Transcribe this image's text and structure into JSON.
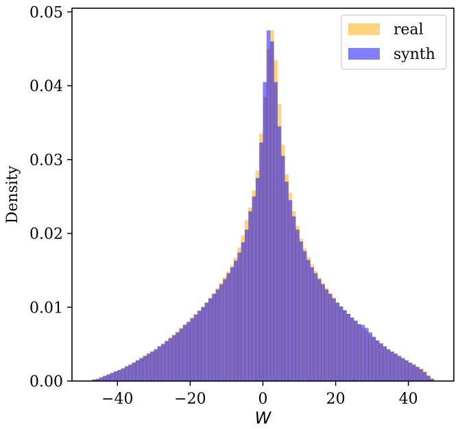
{
  "chart_data": {
    "type": "histogram",
    "xlabel": "W",
    "ylabel": "Density",
    "xlim": [
      -52.5,
      52.5
    ],
    "ylim": [
      0,
      0.0505
    ],
    "xticks": [
      -40,
      -20,
      0,
      20,
      40
    ],
    "xtick_labels": [
      "−40",
      "−20",
      "0",
      "20",
      "40"
    ],
    "yticks": [
      0.0,
      0.01,
      0.02,
      0.03,
      0.04,
      0.05
    ],
    "ytick_labels": [
      "0.00",
      "0.01",
      "0.02",
      "0.03",
      "0.04",
      "0.05"
    ],
    "grid": false,
    "legend_position": "top-right",
    "bin_range": [
      -47,
      47
    ],
    "bin_count": 94,
    "series": [
      {
        "name": "real",
        "color": "#ffa500",
        "alpha": 0.5,
        "values": [
          0.0002,
          0.0003,
          0.0005,
          0.0007,
          0.0009,
          0.0011,
          0.0013,
          0.0015,
          0.0018,
          0.002,
          0.0023,
          0.0025,
          0.0028,
          0.0031,
          0.0034,
          0.0037,
          0.004,
          0.0043,
          0.0047,
          0.0051,
          0.0055,
          0.0059,
          0.0063,
          0.0067,
          0.0072,
          0.0077,
          0.0081,
          0.0086,
          0.0091,
          0.0096,
          0.0101,
          0.0107,
          0.0113,
          0.0119,
          0.0126,
          0.0133,
          0.0141,
          0.0148,
          0.0157,
          0.0167,
          0.0181,
          0.0197,
          0.0218,
          0.0235,
          0.0258,
          0.0285,
          0.0335,
          0.0385,
          0.045,
          0.0475,
          0.0435,
          0.0375,
          0.032,
          0.028,
          0.0255,
          0.023,
          0.021,
          0.0193,
          0.018,
          0.0168,
          0.0158,
          0.0149,
          0.014,
          0.0133,
          0.0126,
          0.0119,
          0.0113,
          0.0107,
          0.0101,
          0.0096,
          0.0091,
          0.0086,
          0.0081,
          0.0077,
          0.0072,
          0.0068,
          0.0063,
          0.0059,
          0.0055,
          0.0051,
          0.0047,
          0.0043,
          0.004,
          0.0037,
          0.0034,
          0.0031,
          0.0028,
          0.0025,
          0.0023,
          0.002,
          0.0017,
          0.0013,
          0.0008,
          0.0004
        ]
      },
      {
        "name": "synth",
        "color": "#0000ff",
        "alpha": 0.5,
        "values": [
          0.0002,
          0.0003,
          0.0005,
          0.0007,
          0.0009,
          0.0011,
          0.0013,
          0.0015,
          0.0017,
          0.002,
          0.0022,
          0.0025,
          0.0028,
          0.0031,
          0.0034,
          0.0037,
          0.004,
          0.0043,
          0.0047,
          0.005,
          0.0054,
          0.0058,
          0.0062,
          0.0066,
          0.0071,
          0.0076,
          0.008,
          0.0085,
          0.009,
          0.0095,
          0.01,
          0.0106,
          0.0112,
          0.0118,
          0.0124,
          0.0131,
          0.0138,
          0.0146,
          0.0154,
          0.0163,
          0.0174,
          0.0188,
          0.0205,
          0.023,
          0.025,
          0.0275,
          0.0323,
          0.0405,
          0.0475,
          0.046,
          0.0405,
          0.0345,
          0.0305,
          0.027,
          0.0245,
          0.0223,
          0.0205,
          0.0189,
          0.0176,
          0.0164,
          0.0154,
          0.0146,
          0.0138,
          0.0131,
          0.0124,
          0.0118,
          0.0112,
          0.0106,
          0.0101,
          0.0096,
          0.0091,
          0.0086,
          0.0082,
          0.0077,
          0.0076,
          0.0072,
          0.0066,
          0.006,
          0.0055,
          0.0051,
          0.0047,
          0.0043,
          0.004,
          0.0037,
          0.0034,
          0.0031,
          0.0028,
          0.0025,
          0.0022,
          0.0019,
          0.0016,
          0.0012,
          0.0007,
          0.0003
        ]
      }
    ]
  }
}
